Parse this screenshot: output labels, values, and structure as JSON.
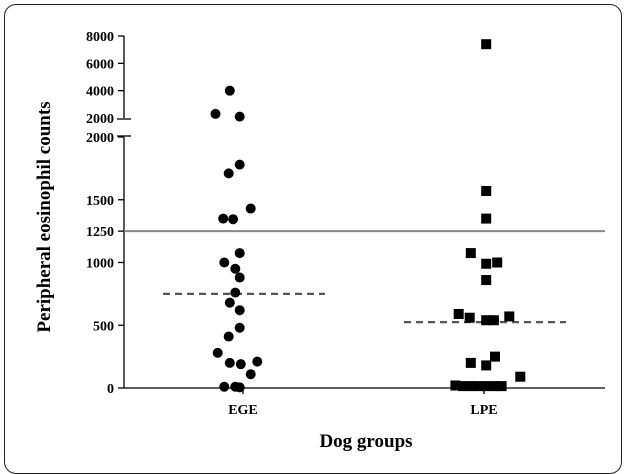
{
  "chart_data": {
    "type": "scatter",
    "title": "",
    "xlabel": "Dog groups",
    "ylabel": "Peripheral eosinophil counts",
    "categories": [
      "EGE",
      "LPE"
    ],
    "y_axis": {
      "broken": true,
      "lower_range": [
        0,
        2000
      ],
      "lower_ticks": [
        "0",
        "500",
        "1000",
        "1250",
        "1500",
        "2000"
      ],
      "upper_range": [
        2000,
        8000
      ],
      "upper_ticks": [
        "2000",
        "4000",
        "6000",
        "8000"
      ]
    },
    "reference_line": {
      "value": 1250,
      "color": "#888888"
    },
    "series": [
      {
        "category": "EGE",
        "marker": "circle",
        "median": 750,
        "points": [
          {
            "x": -0.12,
            "y": 4000
          },
          {
            "x": -0.25,
            "y": 2300
          },
          {
            "x": -0.03,
            "y": 2100
          },
          {
            "x": -0.03,
            "y": 1780
          },
          {
            "x": -0.13,
            "y": 1710
          },
          {
            "x": -0.18,
            "y": 1350
          },
          {
            "x": -0.09,
            "y": 1345
          },
          {
            "x": 0.07,
            "y": 1430
          },
          {
            "x": -0.03,
            "y": 1075
          },
          {
            "x": -0.17,
            "y": 1000
          },
          {
            "x": -0.07,
            "y": 950
          },
          {
            "x": -0.03,
            "y": 880
          },
          {
            "x": -0.07,
            "y": 760
          },
          {
            "x": -0.12,
            "y": 680
          },
          {
            "x": -0.03,
            "y": 620
          },
          {
            "x": -0.03,
            "y": 480
          },
          {
            "x": -0.13,
            "y": 410
          },
          {
            "x": -0.23,
            "y": 280
          },
          {
            "x": -0.12,
            "y": 200
          },
          {
            "x": -0.02,
            "y": 190
          },
          {
            "x": 0.13,
            "y": 210
          },
          {
            "x": 0.07,
            "y": 110
          },
          {
            "x": -0.17,
            "y": 10
          },
          {
            "x": -0.07,
            "y": 10
          },
          {
            "x": -0.03,
            "y": 5
          }
        ]
      },
      {
        "category": "LPE",
        "marker": "square",
        "median": 525,
        "points": [
          {
            "x": 0.02,
            "y": 7400
          },
          {
            "x": 0.02,
            "y": 1570
          },
          {
            "x": 0.02,
            "y": 1350
          },
          {
            "x": -0.12,
            "y": 1075
          },
          {
            "x": 0.02,
            "y": 990
          },
          {
            "x": 0.12,
            "y": 1000
          },
          {
            "x": 0.02,
            "y": 860
          },
          {
            "x": -0.23,
            "y": 590
          },
          {
            "x": -0.13,
            "y": 560
          },
          {
            "x": 0.02,
            "y": 540
          },
          {
            "x": 0.09,
            "y": 540
          },
          {
            "x": 0.23,
            "y": 570
          },
          {
            "x": -0.12,
            "y": 200
          },
          {
            "x": 0.02,
            "y": 180
          },
          {
            "x": 0.1,
            "y": 250
          },
          {
            "x": -0.26,
            "y": 20
          },
          {
            "x": -0.19,
            "y": 15
          },
          {
            "x": -0.12,
            "y": 15
          },
          {
            "x": -0.05,
            "y": 15
          },
          {
            "x": 0.02,
            "y": 15
          },
          {
            "x": 0.1,
            "y": 15
          },
          {
            "x": 0.16,
            "y": 15
          },
          {
            "x": 0.33,
            "y": 90
          }
        ]
      }
    ]
  }
}
